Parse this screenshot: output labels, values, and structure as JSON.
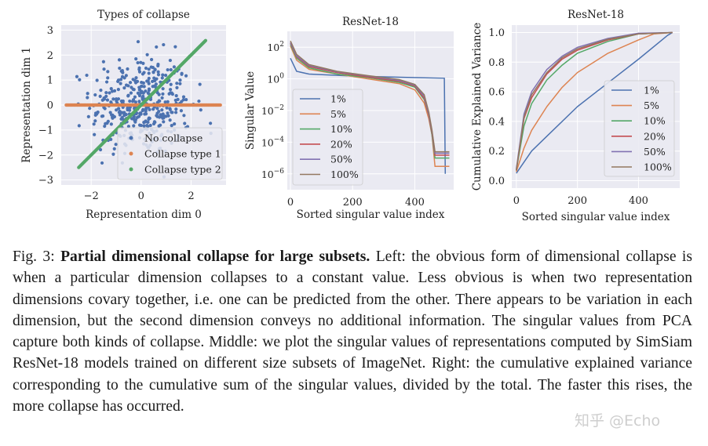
{
  "chart_data": [
    {
      "type": "scatter",
      "title": "Types of collapse",
      "xlabel": "Representation dim 0",
      "ylabel": "Representation dim 1",
      "xlim": [
        -3.2,
        3.4
      ],
      "ylim": [
        -3.2,
        3.2
      ],
      "xticks": [
        -2,
        0,
        2
      ],
      "yticks": [
        -3,
        -2,
        -1,
        0,
        1,
        2,
        3
      ],
      "grid": true,
      "legend_position": "bottom-right",
      "series": [
        {
          "name": "No collapse",
          "color": "#4c72b0",
          "pattern": "isotropic gaussian cloud, about 400 points with unit variance"
        },
        {
          "name": "Collapse type 1",
          "color": "#dd8452",
          "pattern": "points along y = 0, x from -3 to 3.2"
        },
        {
          "name": "Collapse type 2",
          "color": "#55a868",
          "pattern": "points along y = x, x from -2.5 to 2.6"
        }
      ]
    },
    {
      "type": "line",
      "title": "ResNet-18",
      "xlabel": "Sorted singular value index",
      "ylabel": "Singular Value",
      "yscale": "log",
      "xlim": [
        -10,
        525
      ],
      "ylim": [
        1e-07,
        1000
      ],
      "xticks": [
        0,
        200,
        400
      ],
      "yticks_exponents": [
        2,
        0,
        -2,
        -4,
        -6
      ],
      "grid": true,
      "legend_position": "lower-left",
      "series": [
        {
          "name": "1%",
          "color": "#4c72b0",
          "points": [
            [
              0,
              20
            ],
            [
              20,
              3
            ],
            [
              60,
              2
            ],
            [
              200,
              1.5
            ],
            [
              400,
              1.2
            ],
            [
              495,
              1.1
            ],
            [
              498,
              1e-06
            ]
          ]
        },
        {
          "name": "5%",
          "color": "#dd8452",
          "points": [
            [
              0,
              120
            ],
            [
              20,
              15
            ],
            [
              60,
              4
            ],
            [
              150,
              2
            ],
            [
              250,
              1
            ],
            [
              350,
              0.5
            ],
            [
              400,
              0.2
            ],
            [
              430,
              0.03
            ],
            [
              445,
              0.003
            ],
            [
              455,
              0.0003
            ],
            [
              465,
              3e-06
            ],
            [
              511,
              3e-06
            ]
          ]
        },
        {
          "name": "10%",
          "color": "#55a868",
          "points": [
            [
              0,
              150
            ],
            [
              20,
              20
            ],
            [
              60,
              5
            ],
            [
              150,
              2
            ],
            [
              250,
              1.2
            ],
            [
              350,
              0.6
            ],
            [
              400,
              0.3
            ],
            [
              430,
              0.05
            ],
            [
              445,
              0.005
            ],
            [
              455,
              0.0003
            ],
            [
              465,
              1e-05
            ],
            [
              511,
              1e-05
            ]
          ]
        },
        {
          "name": "20%",
          "color": "#c44e52",
          "points": [
            [
              0,
              180
            ],
            [
              20,
              25
            ],
            [
              60,
              6
            ],
            [
              150,
              2.5
            ],
            [
              250,
              1.3
            ],
            [
              350,
              0.7
            ],
            [
              400,
              0.35
            ],
            [
              430,
              0.06
            ],
            [
              445,
              0.005
            ],
            [
              455,
              0.0004
            ],
            [
              465,
              1.5e-05
            ],
            [
              511,
              1.5e-05
            ]
          ]
        },
        {
          "name": "50%",
          "color": "#8172b2",
          "points": [
            [
              0,
              200
            ],
            [
              20,
              28
            ],
            [
              60,
              7
            ],
            [
              150,
              2.8
            ],
            [
              250,
              1.5
            ],
            [
              350,
              0.8
            ],
            [
              400,
              0.4
            ],
            [
              430,
              0.08
            ],
            [
              445,
              0.006
            ],
            [
              455,
              0.0005
            ],
            [
              465,
              2e-05
            ],
            [
              511,
              2e-05
            ]
          ]
        },
        {
          "name": "100%",
          "color": "#937860",
          "points": [
            [
              0,
              250
            ],
            [
              20,
              35
            ],
            [
              60,
              8
            ],
            [
              150,
              3
            ],
            [
              250,
              1.6
            ],
            [
              350,
              0.9
            ],
            [
              400,
              0.45
            ],
            [
              430,
              0.1
            ],
            [
              445,
              0.008
            ],
            [
              455,
              0.0006
            ],
            [
              465,
              2.5e-05
            ],
            [
              511,
              2.5e-05
            ]
          ]
        }
      ]
    },
    {
      "type": "line",
      "title": "ResNet-18",
      "xlabel": "Sorted singular value index",
      "ylabel": "Cumulative Explained Variance",
      "xlim": [
        -15,
        535
      ],
      "ylim": [
        -0.05,
        1.05
      ],
      "xticks": [
        0,
        200,
        400
      ],
      "yticks": [
        0.0,
        0.2,
        0.4,
        0.6,
        0.8,
        1.0
      ],
      "grid": true,
      "legend_position": "lower-right",
      "series": [
        {
          "name": "1%",
          "color": "#4c72b0",
          "points": [
            [
              0,
              0.05
            ],
            [
              50,
              0.2
            ],
            [
              100,
              0.3
            ],
            [
              200,
              0.5
            ],
            [
              300,
              0.66
            ],
            [
              400,
              0.82
            ],
            [
              495,
              0.98
            ],
            [
              511,
              1.0
            ]
          ]
        },
        {
          "name": "5%",
          "color": "#dd8452",
          "points": [
            [
              0,
              0.06
            ],
            [
              25,
              0.22
            ],
            [
              50,
              0.34
            ],
            [
              100,
              0.5
            ],
            [
              150,
              0.63
            ],
            [
              200,
              0.73
            ],
            [
              300,
              0.86
            ],
            [
              400,
              0.95
            ],
            [
              450,
              0.99
            ],
            [
              511,
              1.0
            ]
          ]
        },
        {
          "name": "10%",
          "color": "#55a868",
          "points": [
            [
              0,
              0.07
            ],
            [
              25,
              0.37
            ],
            [
              50,
              0.52
            ],
            [
              100,
              0.68
            ],
            [
              150,
              0.78
            ],
            [
              200,
              0.86
            ],
            [
              300,
              0.94
            ],
            [
              400,
              0.99
            ],
            [
              511,
              1.0
            ]
          ]
        },
        {
          "name": "20%",
          "color": "#c44e52",
          "points": [
            [
              0,
              0.07
            ],
            [
              25,
              0.42
            ],
            [
              50,
              0.56
            ],
            [
              100,
              0.72
            ],
            [
              150,
              0.82
            ],
            [
              200,
              0.88
            ],
            [
              300,
              0.95
            ],
            [
              400,
              0.99
            ],
            [
              511,
              1.0
            ]
          ]
        },
        {
          "name": "50%",
          "color": "#8172b2",
          "points": [
            [
              0,
              0.08
            ],
            [
              25,
              0.45
            ],
            [
              50,
              0.6
            ],
            [
              100,
              0.75
            ],
            [
              150,
              0.84
            ],
            [
              200,
              0.9
            ],
            [
              300,
              0.96
            ],
            [
              400,
              0.995
            ],
            [
              511,
              1.0
            ]
          ]
        },
        {
          "name": "100%",
          "color": "#937860",
          "points": [
            [
              0,
              0.07
            ],
            [
              25,
              0.43
            ],
            [
              50,
              0.58
            ],
            [
              100,
              0.73
            ],
            [
              150,
              0.83
            ],
            [
              200,
              0.89
            ],
            [
              300,
              0.955
            ],
            [
              400,
              0.99
            ],
            [
              511,
              1.0
            ]
          ]
        }
      ]
    }
  ],
  "caption": {
    "label": "Fig. 3:",
    "bold_title": "Partial dimensional collapse for large subsets.",
    "body": "Left: the obvious form of dimensional collapse is when a particular dimension collapses to a constant value. Less obvious is when two representation dimensions covary together, i.e. one can be predicted from the other. There appears to be variation in each dimension, but the second dimension conveys no additional information. The singular values from PCA capture both kinds of collapse. Middle: we plot the singular values of representations computed by SimSiam ResNet-18 models trained on different size subsets of ImageNet. Right: the cumulative explained variance corresponding to the cumulative sum of the singular values, divided by the total. The faster this rises, the more collapse has occurred."
  },
  "watermark": "知乎 @Echo"
}
